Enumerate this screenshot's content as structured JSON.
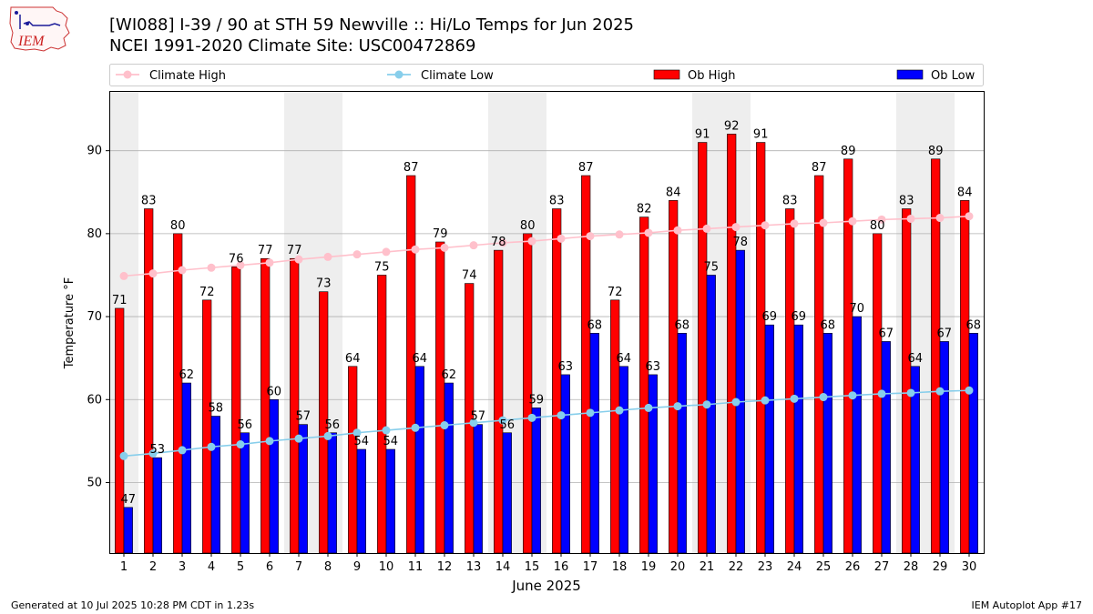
{
  "title_line1": "[WI088] I-39 / 90 at STH 59 Newville  :: Hi/Lo Temps for Jun 2025",
  "title_line2": "NCEI 1991-2020 Climate Site: USC00472869",
  "logo_text": "IEM",
  "footer_left": "Generated at 10 Jul 2025 10:28 PM CDT in 1.23s",
  "footer_right": "IEM Autoplot App #17",
  "colors": {
    "ob_high": "#ff0000",
    "ob_low": "#0000ff",
    "climate_high": "#ffc0cb",
    "climate_low": "#87ceeb",
    "weekend_shade": "#eeeeee",
    "grid": "#b0b0b0"
  },
  "chart_data": {
    "type": "bar",
    "xlabel": "June 2025",
    "ylabel": "Temperature °F",
    "ylim": [
      41.5,
      97.2
    ],
    "yticks": [
      50,
      60,
      70,
      80,
      90
    ],
    "grid": "horizontal",
    "legend_position": "top",
    "categories": [
      "1",
      "2",
      "3",
      "4",
      "5",
      "6",
      "7",
      "8",
      "9",
      "10",
      "11",
      "12",
      "13",
      "14",
      "15",
      "16",
      "17",
      "18",
      "19",
      "20",
      "21",
      "22",
      "23",
      "24",
      "25",
      "26",
      "27",
      "28",
      "29",
      "30"
    ],
    "shaded_days": [
      1,
      7,
      8,
      14,
      15,
      21,
      22,
      28,
      29
    ],
    "series": [
      {
        "name": "Climate High",
        "kind": "line",
        "values": [
          74.9,
          75.2,
          75.6,
          75.9,
          76.2,
          76.5,
          76.9,
          77.2,
          77.5,
          77.8,
          78.1,
          78.3,
          78.6,
          78.9,
          79.1,
          79.4,
          79.7,
          79.9,
          80.1,
          80.4,
          80.6,
          80.8,
          81.0,
          81.2,
          81.3,
          81.5,
          81.7,
          81.8,
          81.9,
          82.1
        ]
      },
      {
        "name": "Climate Low",
        "kind": "line",
        "values": [
          53.2,
          53.5,
          53.9,
          54.3,
          54.6,
          55.0,
          55.3,
          55.6,
          56.0,
          56.3,
          56.6,
          56.9,
          57.2,
          57.5,
          57.8,
          58.1,
          58.4,
          58.7,
          59.0,
          59.2,
          59.4,
          59.7,
          59.9,
          60.1,
          60.3,
          60.5,
          60.7,
          60.8,
          61.0,
          61.1
        ]
      },
      {
        "name": "Ob High",
        "kind": "bar",
        "values": [
          71,
          83,
          80,
          72,
          76,
          77,
          77,
          73,
          64,
          75,
          87,
          79,
          74,
          78,
          80,
          83,
          87,
          72,
          82,
          84,
          91,
          92,
          91,
          83,
          87,
          89,
          80,
          83,
          89,
          84
        ]
      },
      {
        "name": "Ob Low",
        "kind": "bar",
        "values": [
          47,
          53,
          62,
          58,
          56,
          60,
          57,
          56,
          54,
          54,
          64,
          62,
          57,
          56,
          59,
          63,
          68,
          64,
          63,
          68,
          75,
          78,
          69,
          69,
          68,
          70,
          67,
          64,
          67,
          68
        ]
      }
    ]
  }
}
